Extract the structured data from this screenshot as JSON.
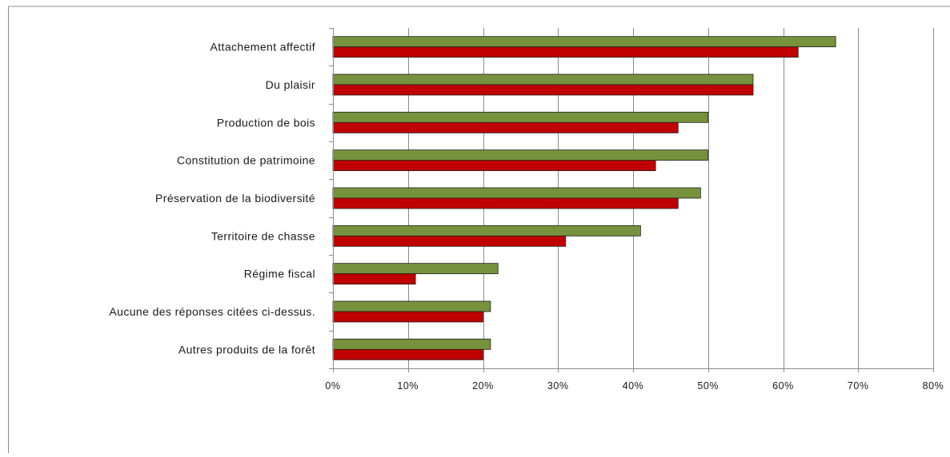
{
  "chart_data": {
    "type": "bar",
    "orientation": "horizontal",
    "categories": [
      "Attachement affectif",
      "Du plaisir",
      "Production de bois",
      "Constitution de patrimoine",
      "Préservation de la biodiversité",
      "Territoire de chasse",
      "Régime fiscal",
      "Aucune des réponses citées ci-dessus.",
      "Autres produits de la forêt"
    ],
    "series": [
      {
        "color": "#76923c",
        "values": [
          67,
          56,
          50,
          50,
          49,
          41,
          22,
          21,
          21
        ]
      },
      {
        "color": "#c00000",
        "values": [
          62,
          56,
          46,
          43,
          46,
          31,
          11,
          20,
          20
        ]
      }
    ],
    "x_ticks": [
      0,
      10,
      20,
      30,
      40,
      50,
      60,
      70,
      80
    ],
    "x_tick_labels": [
      "0%",
      "10%",
      "20%",
      "30%",
      "40%",
      "50%",
      "60%",
      "70%",
      "80%"
    ],
    "xlim": [
      0,
      80
    ],
    "unit": "%",
    "grid": "vertical",
    "legend": "none"
  }
}
